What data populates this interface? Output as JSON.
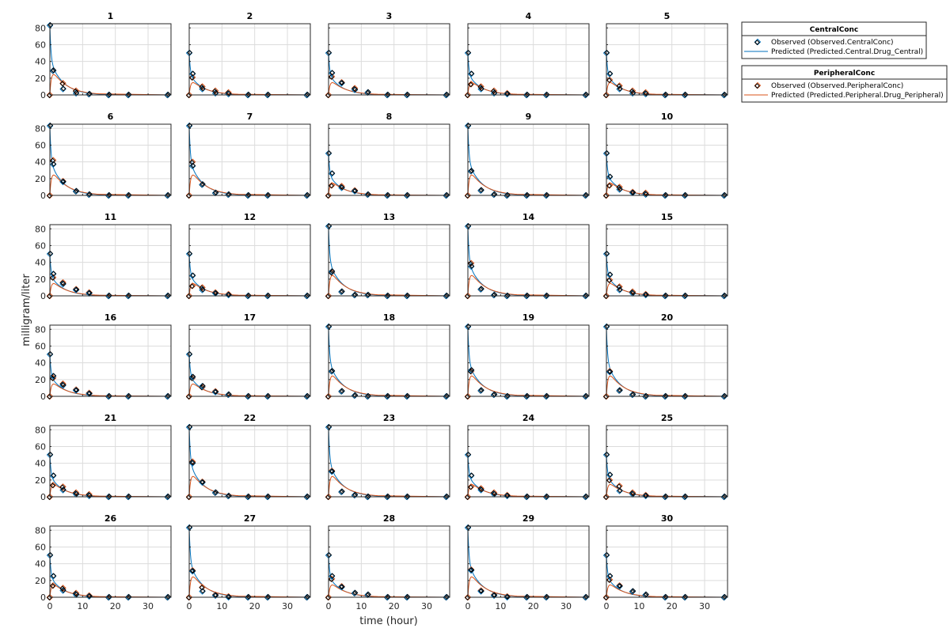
{
  "chart_data": {
    "type": "line",
    "xlabel": "time (hour)",
    "ylabel": "milligram/liter",
    "xlim": [
      0,
      37
    ],
    "ylim": [
      0,
      85
    ],
    "xticks": [
      0,
      10,
      20,
      30
    ],
    "yticks": [
      0,
      20,
      40,
      60,
      80
    ],
    "grid": true,
    "layout": {
      "rows": 6,
      "cols": 5
    },
    "legend_position": "top-right outside",
    "colors": {
      "central": "#0072BD",
      "peripheral": "#D95319",
      "observed_edge": "#000000"
    },
    "legend": [
      {
        "title": "CentralConc",
        "entries": [
          {
            "kind": "marker",
            "color": "#0072BD",
            "label": "Observed (Observed.CentralConc)"
          },
          {
            "kind": "line",
            "color": "#0072BD",
            "label": "Predicted (Predicted.Central.Drug_Central)"
          }
        ]
      },
      {
        "title": "PeripheralConc",
        "entries": [
          {
            "kind": "marker",
            "color": "#D95319",
            "label": "Observed (Observed.PeripheralConc)"
          },
          {
            "kind": "line",
            "color": "#D95319",
            "label": "Predicted (Predicted.Peripheral.Drug_Peripheral)"
          }
        ]
      }
    ],
    "observed_times": [
      0,
      1,
      4,
      8,
      12,
      18,
      24,
      36
    ],
    "panels": [
      {
        "title": "1",
        "dose": 83,
        "central_obs": [
          83,
          29,
          7,
          2,
          1,
          0,
          0,
          0
        ],
        "peripheral_obs": [
          0,
          29,
          14,
          5,
          1,
          0,
          0,
          0
        ]
      },
      {
        "title": "2",
        "dose": 50,
        "central_obs": [
          50,
          25,
          7,
          2,
          1,
          0,
          0,
          0
        ],
        "peripheral_obs": [
          0,
          21,
          10,
          5,
          3,
          0,
          0,
          0
        ]
      },
      {
        "title": "3",
        "dose": 50,
        "central_obs": [
          50,
          26,
          14,
          6,
          3,
          0,
          0,
          0
        ],
        "peripheral_obs": [
          0,
          22,
          15,
          8,
          3,
          0,
          0,
          0
        ]
      },
      {
        "title": "4",
        "dose": 50,
        "central_obs": [
          50,
          25,
          7,
          2,
          1,
          0,
          0,
          0
        ],
        "peripheral_obs": [
          0,
          13,
          10,
          5,
          2,
          0,
          0,
          0
        ]
      },
      {
        "title": "5",
        "dose": 50,
        "central_obs": [
          50,
          25,
          7,
          2,
          1,
          0,
          0,
          0
        ],
        "peripheral_obs": [
          0,
          18,
          11,
          5,
          3,
          0,
          0,
          0
        ]
      },
      {
        "title": "6",
        "dose": 83,
        "central_obs": [
          83,
          37,
          16,
          5,
          1,
          0,
          0,
          0
        ],
        "peripheral_obs": [
          0,
          42,
          17,
          5,
          1,
          0,
          0,
          0
        ]
      },
      {
        "title": "7",
        "dose": 83,
        "central_obs": [
          83,
          35,
          13,
          3,
          1,
          0,
          0,
          0
        ],
        "peripheral_obs": [
          0,
          40,
          13,
          3,
          1,
          0,
          0,
          0
        ]
      },
      {
        "title": "8",
        "dose": 50,
        "central_obs": [
          50,
          26,
          9,
          5,
          1,
          0,
          0,
          0
        ],
        "peripheral_obs": [
          0,
          12,
          11,
          6,
          1,
          0,
          0,
          0
        ]
      },
      {
        "title": "9",
        "dose": 83,
        "central_obs": [
          83,
          29,
          6,
          1,
          0,
          0,
          0,
          0
        ],
        "peripheral_obs": [
          0,
          29,
          6,
          1,
          0,
          0,
          0,
          0
        ]
      },
      {
        "title": "10",
        "dose": 50,
        "central_obs": [
          50,
          22,
          7,
          3,
          1,
          0,
          0,
          0
        ],
        "peripheral_obs": [
          0,
          12,
          10,
          4,
          3,
          0,
          0,
          0
        ]
      },
      {
        "title": "11",
        "dose": 50,
        "central_obs": [
          50,
          26,
          14,
          7,
          3,
          0,
          0,
          0
        ],
        "peripheral_obs": [
          0,
          22,
          16,
          8,
          4,
          0,
          0,
          0
        ]
      },
      {
        "title": "12",
        "dose": 50,
        "central_obs": [
          50,
          24,
          7,
          3,
          1,
          0,
          0,
          0
        ],
        "peripheral_obs": [
          0,
          12,
          10,
          4,
          2,
          0,
          0,
          0
        ]
      },
      {
        "title": "13",
        "dose": 83,
        "central_obs": [
          83,
          29,
          5,
          1,
          1,
          0,
          0,
          0
        ],
        "peripheral_obs": [
          0,
          28,
          5,
          1,
          1,
          0,
          0,
          0
        ]
      },
      {
        "title": "14",
        "dose": 83,
        "central_obs": [
          83,
          35,
          8,
          1,
          0,
          0,
          0,
          0
        ],
        "peripheral_obs": [
          0,
          39,
          8,
          1,
          0,
          0,
          0,
          0
        ]
      },
      {
        "title": "15",
        "dose": 50,
        "central_obs": [
          50,
          25,
          7,
          3,
          1,
          0,
          0,
          0
        ],
        "peripheral_obs": [
          0,
          19,
          11,
          5,
          2,
          0,
          0,
          0
        ]
      },
      {
        "title": "16",
        "dose": 50,
        "central_obs": [
          50,
          24,
          13,
          7,
          3,
          0,
          0,
          0
        ],
        "peripheral_obs": [
          0,
          22,
          15,
          8,
          4,
          0,
          0,
          0
        ]
      },
      {
        "title": "17",
        "dose": 50,
        "central_obs": [
          50,
          23,
          12,
          5,
          2,
          0,
          0,
          0
        ],
        "peripheral_obs": [
          0,
          22,
          11,
          6,
          2,
          0,
          0,
          0
        ]
      },
      {
        "title": "18",
        "dose": 83,
        "central_obs": [
          83,
          30,
          6,
          1,
          0,
          0,
          0,
          0
        ],
        "peripheral_obs": [
          0,
          30,
          6,
          1,
          0,
          0,
          0,
          0
        ]
      },
      {
        "title": "19",
        "dose": 83,
        "central_obs": [
          83,
          31,
          7,
          2,
          0,
          0,
          0,
          0
        ],
        "peripheral_obs": [
          0,
          30,
          7,
          2,
          0,
          0,
          0,
          0
        ]
      },
      {
        "title": "20",
        "dose": 83,
        "central_obs": [
          83,
          29,
          7,
          2,
          0,
          0,
          0,
          0
        ],
        "peripheral_obs": [
          0,
          30,
          7,
          2,
          0,
          0,
          0,
          0
        ]
      },
      {
        "title": "21",
        "dose": 50,
        "central_obs": [
          50,
          25,
          8,
          3,
          1,
          0,
          0,
          0
        ],
        "peripheral_obs": [
          0,
          14,
          12,
          5,
          3,
          0,
          0,
          0
        ]
      },
      {
        "title": "22",
        "dose": 83,
        "central_obs": [
          83,
          40,
          17,
          5,
          1,
          0,
          0,
          0
        ],
        "peripheral_obs": [
          0,
          42,
          18,
          5,
          1,
          0,
          0,
          0
        ]
      },
      {
        "title": "23",
        "dose": 83,
        "central_obs": [
          83,
          30,
          6,
          2,
          0,
          0,
          0,
          0
        ],
        "peripheral_obs": [
          0,
          31,
          6,
          2,
          0,
          0,
          0,
          0
        ]
      },
      {
        "title": "24",
        "dose": 50,
        "central_obs": [
          50,
          25,
          8,
          3,
          1,
          0,
          0,
          0
        ],
        "peripheral_obs": [
          0,
          12,
          10,
          5,
          2,
          0,
          0,
          0
        ]
      },
      {
        "title": "25",
        "dose": 50,
        "central_obs": [
          50,
          26,
          7,
          3,
          1,
          0,
          0,
          0
        ],
        "peripheral_obs": [
          0,
          20,
          13,
          5,
          2,
          0,
          0,
          0
        ]
      },
      {
        "title": "26",
        "dose": 50,
        "central_obs": [
          50,
          25,
          8,
          3,
          1,
          0,
          0,
          0
        ],
        "peripheral_obs": [
          0,
          14,
          11,
          5,
          2,
          0,
          0,
          0
        ]
      },
      {
        "title": "27",
        "dose": 83,
        "central_obs": [
          83,
          31,
          7,
          2,
          0,
          0,
          0,
          0
        ],
        "peripheral_obs": [
          0,
          32,
          12,
          3,
          1,
          0,
          0,
          0
        ]
      },
      {
        "title": "28",
        "dose": 50,
        "central_obs": [
          50,
          25,
          12,
          5,
          3,
          0,
          0,
          0
        ],
        "peripheral_obs": [
          0,
          22,
          13,
          5,
          3,
          0,
          0,
          0
        ]
      },
      {
        "title": "29",
        "dose": 83,
        "central_obs": [
          83,
          32,
          7,
          2,
          0,
          0,
          0,
          0
        ],
        "peripheral_obs": [
          0,
          33,
          8,
          3,
          1,
          0,
          0,
          0
        ]
      },
      {
        "title": "30",
        "dose": 50,
        "central_obs": [
          50,
          25,
          13,
          7,
          3,
          0,
          0,
          0
        ],
        "peripheral_obs": [
          0,
          21,
          14,
          7,
          3,
          0,
          0,
          0
        ]
      }
    ]
  }
}
